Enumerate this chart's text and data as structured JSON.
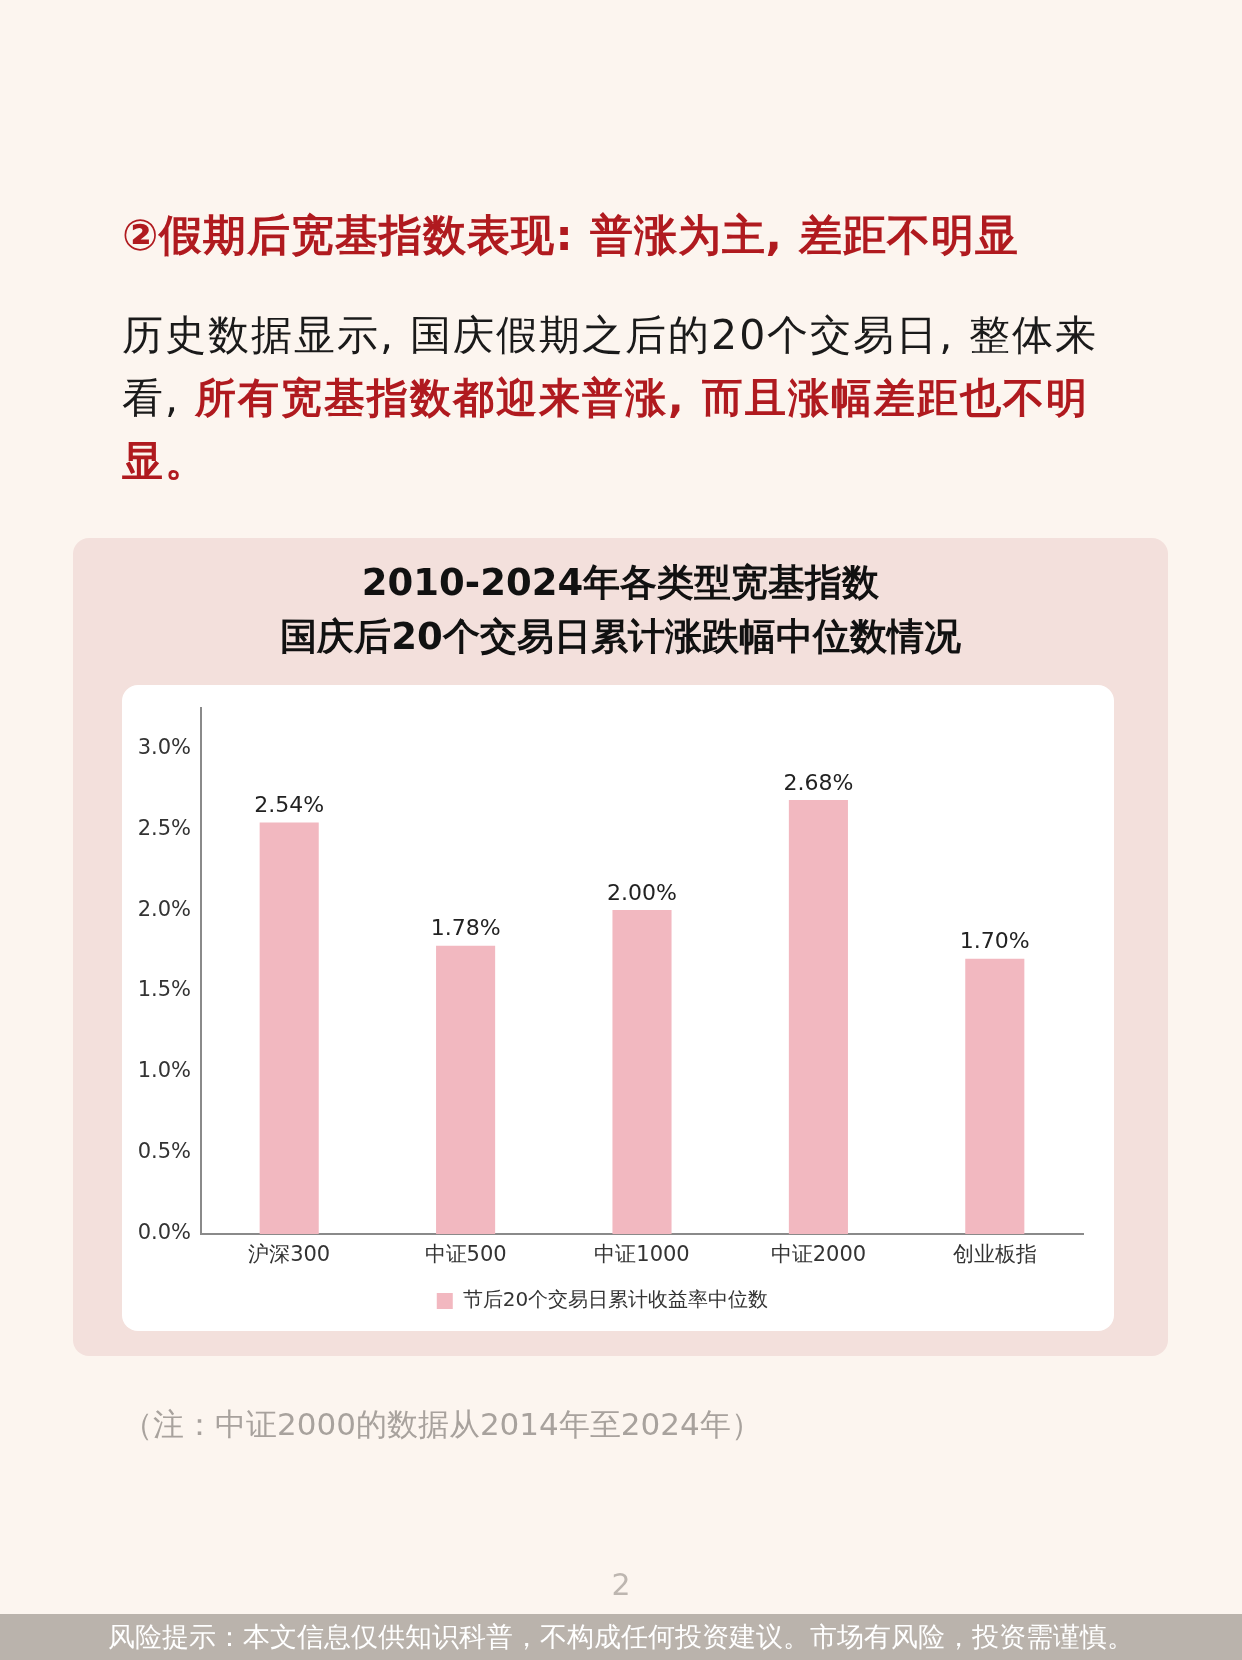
{
  "chart_data": {
    "type": "bar",
    "title": "2010-2024年各类型宽基指数",
    "subtitle": "国庆后20个交易日累计涨跌幅中位数情况",
    "categories": [
      "沪深300",
      "中证500",
      "中证1000",
      "中证2000",
      "创业板指"
    ],
    "series": [
      {
        "name": "节后20个交易日累计收益率中位数",
        "color": "#f2b8c0",
        "values": [
          2.54,
          1.78,
          2.0,
          2.68,
          1.7
        ],
        "value_labels": [
          "2.54%",
          "1.78%",
          "2.00%",
          "2.68%",
          "1.70%"
        ]
      }
    ],
    "ylim": [
      0,
      3.25
    ],
    "yticks": [
      {
        "value": 0,
        "label": "0.0%"
      },
      {
        "value": 0.5,
        "label": "0.5%"
      },
      {
        "value": 1,
        "label": "1.0%"
      },
      {
        "value": 1.5,
        "label": "1.5%"
      },
      {
        "value": 2,
        "label": "2.0%"
      },
      {
        "value": 2.5,
        "label": "2.5%"
      },
      {
        "value": 3,
        "label": "3.0%"
      }
    ],
    "grid": false,
    "legend": "bottom",
    "annotations": [
      "②假期后宽基指数表现: 普涨为主, 差距不明显",
      "历史数据显示, 国庆假期之后的20个交易日, 整体来",
      "看, ",
      "所有宽基指数都迎来普涨, 而且涨幅差距也不明",
      "显。",
      "（注：中证2000的数据从2014年至2024年）",
      "2",
      "风险提示：本文信息仅供知识科普，不构成任何投资建议。市场有风险，投资需谨慎。"
    ]
  }
}
